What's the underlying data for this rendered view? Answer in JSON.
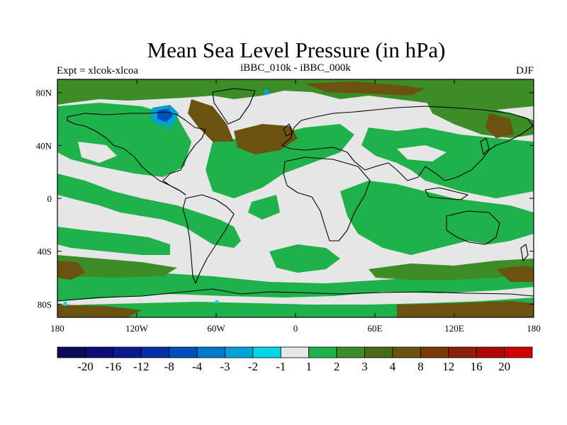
{
  "header": {
    "title": "Mean Sea Level Pressure (in hPa)",
    "left_label": "Expt = xlcok-xlcoa",
    "center_label": "iBBC_010k - iBBC_000k",
    "right_label": "DJF"
  },
  "map": {
    "lon_ticks": [
      "180",
      "120W",
      "60W",
      "0",
      "60E",
      "120E",
      "180"
    ],
    "lat_ticks": [
      "80N",
      "40N",
      "0",
      "40S",
      "80S"
    ],
    "lat_range": [
      -90,
      90
    ],
    "lon_range": [
      -180,
      180
    ],
    "background_class_color": "#e6e6e6"
  },
  "colorbar": {
    "colors": [
      "#0a0a5a",
      "#0d0d77",
      "#0a1a8c",
      "#0030a6",
      "#0050bb",
      "#0078cc",
      "#00a0d8",
      "#00d8e8",
      "#e6e6e6",
      "#1fb14a",
      "#3c8c28",
      "#4a6a18",
      "#6a5210",
      "#7a3a08",
      "#8c2008",
      "#b00808",
      "#d00000"
    ],
    "labels": [
      "-20",
      "-16",
      "-12",
      "-8",
      "-4",
      "-3",
      "-2",
      "-1",
      "1",
      "2",
      "3",
      "4",
      "8",
      "12",
      "16",
      "20"
    ]
  }
}
